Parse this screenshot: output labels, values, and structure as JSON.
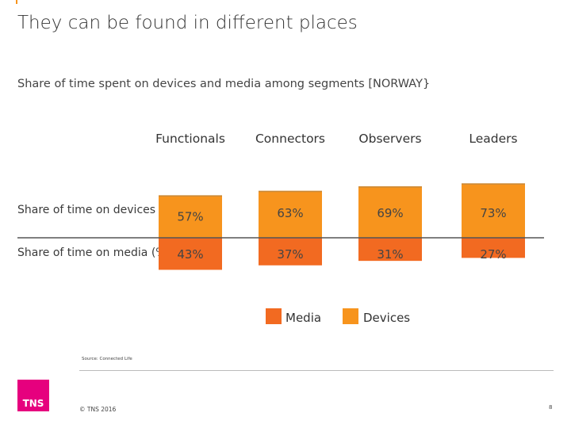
{
  "page": {
    "title": "They can be found in different places",
    "source": "Source: Connected Life",
    "copyright": "© TNS 2016",
    "page_number": "8",
    "logo_text": "TNS"
  },
  "chart_data": {
    "type": "bar",
    "stacked": true,
    "orientation": "vertical",
    "title": "Share of time spent on devices and media among segments [NORWAY}",
    "categories": [
      "Functionals",
      "Connectors",
      "Observers",
      "Leaders"
    ],
    "row_labels": [
      "Share of time on devices (%)",
      "Share of time on media (%)"
    ],
    "series": [
      {
        "name": "Media",
        "values": [
          43,
          37,
          31,
          27
        ],
        "labels": [
          "43%",
          "37%",
          "31%",
          "27%"
        ],
        "color": "#f26a21"
      },
      {
        "name": "Devices",
        "values": [
          57,
          63,
          69,
          73
        ],
        "labels": [
          "57%",
          "63%",
          "69%",
          "73%"
        ],
        "color": "#f7941d"
      }
    ],
    "ylim": [
      0,
      100
    ],
    "legend_position": "bottom-center",
    "grid": false
  }
}
